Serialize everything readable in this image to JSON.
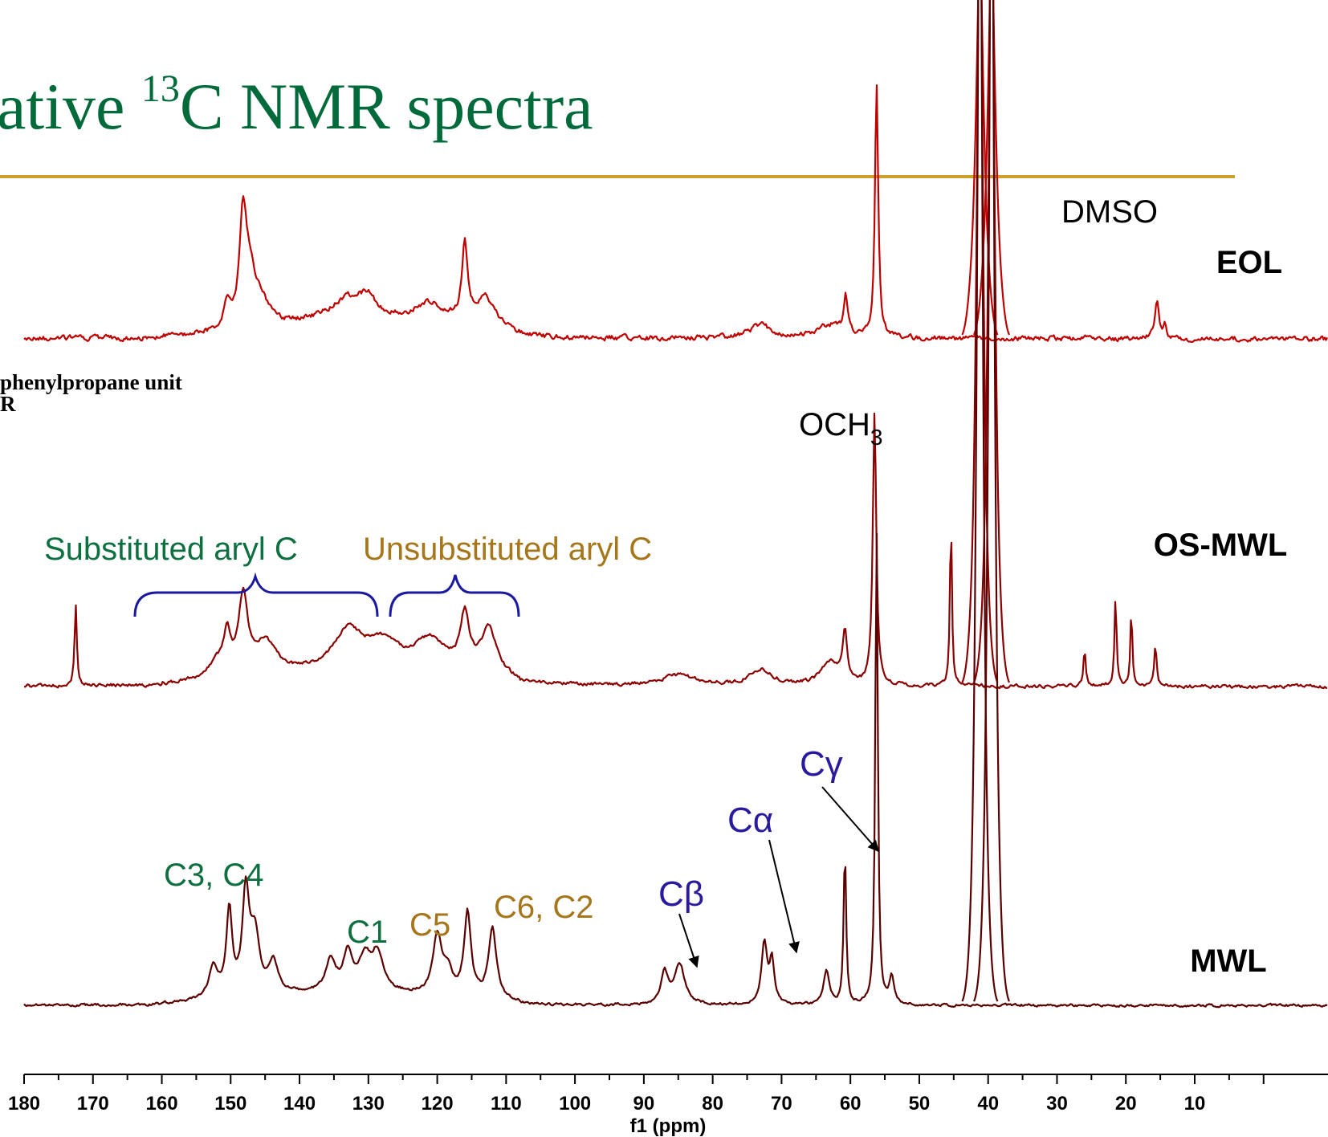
{
  "slide": {
    "title_main": "ative ",
    "title_sup": "13",
    "title_rest": "C NMR spectra",
    "side_note_line1": "phenylpropane unit",
    "side_note_line2": "R"
  },
  "colors": {
    "title": "#006a3a",
    "rule": "#c9a227",
    "eol": "#c00000",
    "osmwl": "#8b0000",
    "mwl": "#5a0000",
    "green_label": "#0e7040",
    "gold_label": "#a5761a",
    "blue_label": "#2a1a9e",
    "bracket": "#1a1a9e"
  },
  "chart_data": {
    "type": "line",
    "xlabel": "f1 (ppm)",
    "xlim": [
      180,
      0
    ],
    "x_reversed": true,
    "x_ticks": [
      180,
      170,
      160,
      150,
      140,
      130,
      120,
      110,
      100,
      90,
      80,
      70,
      60,
      50,
      40,
      30,
      20,
      10
    ],
    "grid": false,
    "series": [
      {
        "name": "EOL",
        "baseline_intensity": 0.0,
        "peaks": [
          {
            "ppm": 148.2,
            "h": 0.95,
            "w": 0.6
          },
          {
            "ppm": 147.2,
            "h": 0.45,
            "w": 1.0
          },
          {
            "ppm": 150.5,
            "h": 0.22,
            "w": 0.6
          },
          {
            "ppm": 145.5,
            "h": 0.2,
            "w": 1.5
          },
          {
            "ppm": 132.5,
            "h": 0.25,
            "w": 4.0
          },
          {
            "ppm": 130.0,
            "h": 0.12,
            "w": 1.0
          },
          {
            "ppm": 121.0,
            "h": 0.22,
            "w": 3.0
          },
          {
            "ppm": 116.0,
            "h": 0.72,
            "w": 0.5
          },
          {
            "ppm": 113.0,
            "h": 0.3,
            "w": 1.8
          },
          {
            "ppm": 73.0,
            "h": 0.12,
            "w": 2.0
          },
          {
            "ppm": 63.0,
            "h": 0.12,
            "w": 2.0
          },
          {
            "ppm": 60.7,
            "h": 0.35,
            "w": 0.35
          },
          {
            "ppm": 56.2,
            "h": 2.32,
            "w": 0.28
          },
          {
            "ppm": 15.5,
            "h": 0.36,
            "w": 0.35
          },
          {
            "ppm": 14.3,
            "h": 0.12,
            "w": 0.3
          }
        ],
        "solvent_peaks_ppm": [
          41.2,
          39.5
        ]
      },
      {
        "name": "OS-MWL",
        "peaks": [
          {
            "ppm": 172.5,
            "h": 0.78,
            "w": 0.2
          },
          {
            "ppm": 148.2,
            "h": 0.72,
            "w": 0.8
          },
          {
            "ppm": 150.5,
            "h": 0.35,
            "w": 0.6
          },
          {
            "ppm": 145.0,
            "h": 0.3,
            "w": 2.0
          },
          {
            "ppm": 152.0,
            "h": 0.15,
            "w": 1.5
          },
          {
            "ppm": 133.0,
            "h": 0.35,
            "w": 2.5
          },
          {
            "ppm": 128.0,
            "h": 0.25,
            "w": 3.0
          },
          {
            "ppm": 121.0,
            "h": 0.32,
            "w": 3.0
          },
          {
            "ppm": 116.0,
            "h": 0.52,
            "w": 0.8
          },
          {
            "ppm": 112.5,
            "h": 0.45,
            "w": 1.5
          },
          {
            "ppm": 85.0,
            "h": 0.1,
            "w": 3.0
          },
          {
            "ppm": 73.0,
            "h": 0.15,
            "w": 2.0
          },
          {
            "ppm": 63.0,
            "h": 0.22,
            "w": 1.5
          },
          {
            "ppm": 60.8,
            "h": 0.45,
            "w": 0.4
          },
          {
            "ppm": 56.5,
            "h": 2.55,
            "w": 0.3
          },
          {
            "ppm": 45.4,
            "h": 1.55,
            "w": 0.18
          },
          {
            "ppm": 26.0,
            "h": 0.35,
            "w": 0.18
          },
          {
            "ppm": 21.5,
            "h": 0.85,
            "w": 0.18
          },
          {
            "ppm": 19.2,
            "h": 0.7,
            "w": 0.18
          },
          {
            "ppm": 15.7,
            "h": 0.38,
            "w": 0.2
          }
        ],
        "solvent_peaks_ppm": [
          41.2,
          39.5
        ]
      },
      {
        "name": "MWL",
        "peaks": [
          {
            "ppm": 147.8,
            "h": 0.95,
            "w": 0.6
          },
          {
            "ppm": 150.2,
            "h": 0.8,
            "w": 0.5
          },
          {
            "ppm": 146.5,
            "h": 0.55,
            "w": 0.8
          },
          {
            "ppm": 152.5,
            "h": 0.3,
            "w": 0.8
          },
          {
            "ppm": 143.8,
            "h": 0.3,
            "w": 0.8
          },
          {
            "ppm": 135.5,
            "h": 0.3,
            "w": 0.8
          },
          {
            "ppm": 133.0,
            "h": 0.35,
            "w": 0.8
          },
          {
            "ppm": 130.5,
            "h": 0.3,
            "w": 1.0
          },
          {
            "ppm": 128.7,
            "h": 0.35,
            "w": 1.0
          },
          {
            "ppm": 120.0,
            "h": 0.55,
            "w": 0.8
          },
          {
            "ppm": 118.5,
            "h": 0.22,
            "w": 0.8
          },
          {
            "ppm": 115.6,
            "h": 0.8,
            "w": 0.6
          },
          {
            "ppm": 112.0,
            "h": 0.68,
            "w": 0.7
          },
          {
            "ppm": 87.0,
            "h": 0.3,
            "w": 0.6
          },
          {
            "ppm": 84.8,
            "h": 0.38,
            "w": 0.9
          },
          {
            "ppm": 72.5,
            "h": 0.58,
            "w": 0.5
          },
          {
            "ppm": 71.4,
            "h": 0.4,
            "w": 0.4
          },
          {
            "ppm": 63.5,
            "h": 0.32,
            "w": 0.5
          },
          {
            "ppm": 60.8,
            "h": 1.45,
            "w": 0.22
          },
          {
            "ppm": 56.2,
            "h": 4.5,
            "w": 0.22
          },
          {
            "ppm": 54.0,
            "h": 0.25,
            "w": 0.4
          }
        ],
        "solvent_peaks_ppm": [
          41.2,
          39.5
        ]
      }
    ],
    "annotations": {
      "dmso": "DMSO",
      "och3": "OCH",
      "och3_sub": "3",
      "eol": "EOL",
      "osmwl": "OS-MWL",
      "mwl": "MWL",
      "substituted": "Substituted aryl C",
      "unsubstituted": "Unsubstituted aryl C",
      "c3c4": "C3, C4",
      "c1": "C1",
      "c5": "C5",
      "c6c2": "C6, C2",
      "cbeta": "Cβ",
      "calpha": "Cα",
      "cgamma": "Cγ"
    }
  }
}
